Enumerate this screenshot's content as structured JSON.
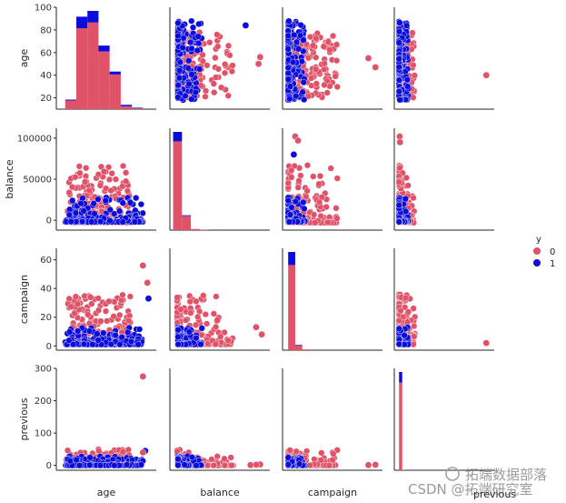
{
  "chart_data": {
    "type": "scatter",
    "kind": "pairplot",
    "variables": [
      "age",
      "balance",
      "campaign",
      "previous"
    ],
    "hue": {
      "title": "y",
      "levels": [
        {
          "name": "0",
          "color": "#e05268"
        },
        {
          "name": "1",
          "color": "#0b0bdc"
        }
      ]
    },
    "axes": {
      "age": {
        "range": [
          10,
          100
        ],
        "ticks": [
          "20",
          "40",
          "60",
          "80",
          "100"
        ]
      },
      "balance": {
        "range": [
          -12000,
          112000
        ],
        "ticks": [
          "0",
          "50000",
          "100000"
        ]
      },
      "campaign": {
        "range": [
          -3,
          68
        ],
        "ticks": [
          "0",
          "20",
          "40",
          "60"
        ]
      },
      "previous": {
        "range": [
          -15,
          300
        ],
        "ticks": [
          "0",
          "100",
          "200",
          "300"
        ]
      }
    },
    "diag_hist": {
      "age": {
        "bins": [
          [
            18,
            28
          ],
          [
            28,
            38
          ],
          [
            38,
            48
          ],
          [
            48,
            58
          ],
          [
            58,
            68
          ],
          [
            68,
            78
          ],
          [
            78,
            88
          ]
        ],
        "counts0": [
          3,
          28,
          30,
          20,
          12,
          1,
          0.3
        ],
        "counts1": [
          0.3,
          4,
          4,
          2,
          1,
          0.5,
          0.2
        ]
      },
      "balance": {
        "bins": [
          [
            -8000,
            3000
          ],
          [
            3000,
            14000
          ],
          [
            14000,
            25000
          ],
          [
            25000,
            36000
          ]
        ],
        "counts0": [
          75,
          12,
          0.8,
          0.3
        ],
        "counts1": [
          8,
          0.6,
          0.1,
          0
        ]
      },
      "campaign": {
        "bins": [
          [
            1,
            6
          ],
          [
            6,
            11
          ],
          [
            11,
            16
          ]
        ],
        "counts0": [
          52,
          3,
          0.5
        ],
        "counts1": [
          8,
          0.3,
          0
        ]
      },
      "previous": {
        "bins": [
          [
            0,
            10
          ],
          [
            10,
            20
          ]
        ],
        "counts0": [
          250,
          1
        ],
        "counts1": [
          30,
          0.2
        ]
      }
    },
    "highlight_points": {
      "age|balance": [
        [
          1,
          82000,
          84
        ],
        [
          1,
          58000,
          62
        ],
        [
          0,
          38000,
          78
        ],
        [
          0,
          20000,
          87
        ]
      ],
      "age|campaign": [
        [
          1,
          93,
          33
        ],
        [
          0,
          92,
          44
        ],
        [
          0,
          88,
          56
        ]
      ],
      "age|previous": [
        [
          1,
          90,
          45
        ],
        [
          0,
          88,
          40
        ],
        [
          0,
          88,
          275
        ]
      ],
      "balance|age": [
        [
          1,
          82000,
          84
        ],
        [
          0,
          100000,
          56
        ],
        [
          0,
          98000,
          50
        ]
      ],
      "balance|campaign": [
        [
          0,
          102000,
          8
        ],
        [
          0,
          95000,
          13
        ],
        [
          0,
          47000,
          18
        ]
      ],
      "balance|previous": [
        [
          0,
          100000,
          3
        ],
        [
          0,
          95000,
          2
        ],
        [
          0,
          88000,
          1
        ]
      ],
      "campaign|age": [
        [
          0,
          63,
          47
        ],
        [
          0,
          58,
          55
        ]
      ],
      "campaign|balance": [
        [
          0,
          6,
          102000
        ],
        [
          0,
          8,
          97000
        ],
        [
          1,
          5,
          80000
        ]
      ],
      "campaign|previous": [
        [
          0,
          63,
          2
        ],
        [
          0,
          58,
          1
        ]
      ],
      "previous|age": [
        [
          0,
          275,
          40
        ]
      ],
      "previous|balance": [
        [
          0,
          2,
          102000
        ],
        [
          0,
          3,
          95000
        ]
      ],
      "previous|campaign": [
        [
          0,
          275,
          2
        ]
      ]
    }
  },
  "watermark": {
    "line1": "拓端数据部落",
    "line2": "CSDN @拓端研究室",
    "partial": "previous"
  }
}
